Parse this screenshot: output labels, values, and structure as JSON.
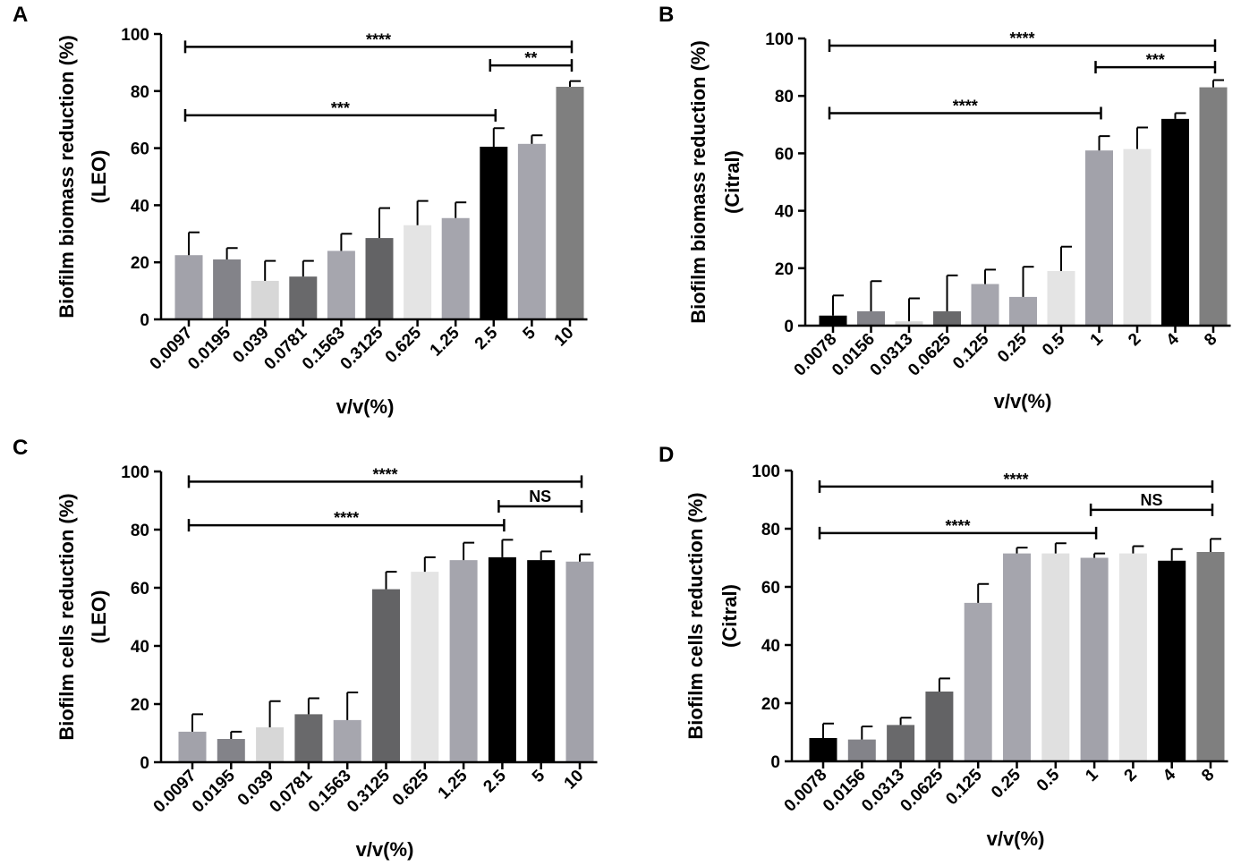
{
  "chart_data": [
    {
      "panel": "A",
      "type": "bar",
      "ylabel_lines": [
        "Biofilm biomass reduction (%)",
        "(LEO)"
      ],
      "xlabel": "v/v(%)",
      "ylim": [
        0,
        100
      ],
      "yticks": [
        "0",
        "20",
        "40",
        "60",
        "80",
        "100"
      ],
      "categories": [
        "0.0097",
        "0.0195",
        "0.039",
        "0.0781",
        "0.1563",
        "0.3125",
        "0.625",
        "1.25",
        "2.5",
        "5",
        "10"
      ],
      "values": [
        22.5,
        21,
        13.5,
        15,
        24,
        28.5,
        33,
        35.5,
        60.5,
        61.5,
        81.5
      ],
      "errors": [
        8,
        4,
        7,
        5.5,
        6,
        10.5,
        8.5,
        5.5,
        6.5,
        3,
        2
      ],
      "bar_colors": [
        "#a2a2aa",
        "#838389",
        "#d7d7d7",
        "#69696b",
        "#a6a6ae",
        "#636365",
        "#e4e4e4",
        "#a5a5ad",
        "#000000",
        "#a5a5ad",
        "#7f7f7f"
      ],
      "significance": [
        {
          "from": 0,
          "to": 10,
          "label": "****",
          "level": 95.5
        },
        {
          "from": 8,
          "to": 10,
          "label": "**",
          "level": 89
        },
        {
          "from": 0,
          "to": 8,
          "label": "***",
          "level": 71.5
        }
      ]
    },
    {
      "panel": "B",
      "type": "bar",
      "ylabel_lines": [
        "Biofilm biomass reduction (%)",
        "(Citral)"
      ],
      "xlabel": "v/v(%)",
      "ylim": [
        0,
        100
      ],
      "yticks": [
        "0",
        "20",
        "40",
        "60",
        "80",
        "100"
      ],
      "categories": [
        "0.0078",
        "0.0156",
        "0.0313",
        "0.0625",
        "0.125",
        "0.25",
        "0.5",
        "1",
        "2",
        "4",
        "8"
      ],
      "values": [
        3.5,
        5,
        1.5,
        5,
        14.5,
        10,
        19,
        61,
        61.5,
        72,
        83
      ],
      "errors": [
        7,
        10.5,
        8,
        12.5,
        5,
        10.5,
        8.5,
        5,
        7.5,
        2,
        2.5
      ],
      "bar_colors": [
        "#000000",
        "#838389",
        "#d7d7d7",
        "#69696b",
        "#a6a6ae",
        "#a5a5ad",
        "#e4e4e4",
        "#a2a2aa",
        "#e4e4e4",
        "#000000",
        "#7f7f7f"
      ],
      "significance": [
        {
          "from": 0,
          "to": 10,
          "label": "****",
          "level": 97.5
        },
        {
          "from": 7,
          "to": 10,
          "label": "***",
          "level": 90
        },
        {
          "from": 0,
          "to": 7,
          "label": "****",
          "level": 74
        }
      ]
    },
    {
      "panel": "C",
      "type": "bar",
      "ylabel_lines": [
        "Biofilm cells reduction (%)",
        "(LEO)"
      ],
      "xlabel": "v/v(%)",
      "ylim": [
        0,
        100
      ],
      "yticks": [
        "0",
        "20",
        "40",
        "60",
        "80",
        "100"
      ],
      "categories": [
        "0.0097",
        "0.0195",
        "0.039",
        "0.0781",
        "0.1563",
        "0.3125",
        "0.625",
        "1.25",
        "2.5",
        "5",
        "10"
      ],
      "values": [
        10.5,
        8,
        12,
        16.5,
        14.5,
        59.5,
        65.5,
        69.5,
        70.5,
        69.5,
        69
      ],
      "errors": [
        6,
        2.5,
        9,
        5.5,
        9.5,
        6,
        5,
        6,
        6,
        3,
        2.5
      ],
      "bar_colors": [
        "#a2a2aa",
        "#838389",
        "#d7d7d7",
        "#69696b",
        "#a6a6ae",
        "#636365",
        "#e4e4e4",
        "#a5a5ad",
        "#000000",
        "#000000",
        "#a2a2aa"
      ],
      "significance": [
        {
          "from": 0,
          "to": 10,
          "label": "****",
          "level": 96.5
        },
        {
          "from": 8,
          "to": 10,
          "label": "NS",
          "level": 88
        },
        {
          "from": 0,
          "to": 8,
          "label": "****",
          "level": 81.5
        }
      ]
    },
    {
      "panel": "D",
      "type": "bar",
      "ylabel_lines": [
        "Biofilm cells reduction (%)",
        "(Citral)"
      ],
      "xlabel": "v/v(%)",
      "ylim": [
        0,
        100
      ],
      "yticks": [
        "0",
        "20",
        "40",
        "60",
        "80",
        "100"
      ],
      "categories": [
        "0.0078",
        "0.0156",
        "0.0313",
        "0.0625",
        "0.125",
        "0.25",
        "0.5",
        "1",
        "2",
        "4",
        "8"
      ],
      "values": [
        8,
        7.5,
        12.5,
        24,
        54.5,
        71.5,
        71.5,
        70,
        71.5,
        69,
        72
      ],
      "errors": [
        5,
        4.5,
        2.5,
        4.5,
        6.5,
        2,
        3.5,
        1.5,
        2.5,
        4,
        4.5
      ],
      "bar_colors": [
        "#000000",
        "#838389",
        "#69696b",
        "#636365",
        "#a6a6ae",
        "#a5a5ad",
        "#e0e0e0",
        "#a2a2aa",
        "#e4e4e4",
        "#000000",
        "#7f7f7f"
      ],
      "significance": [
        {
          "from": 0,
          "to": 10,
          "label": "****",
          "level": 94.5
        },
        {
          "from": 7,
          "to": 10,
          "label": "NS",
          "level": 86.5
        },
        {
          "from": 0,
          "to": 7,
          "label": "****",
          "level": 78.5
        }
      ]
    }
  ]
}
